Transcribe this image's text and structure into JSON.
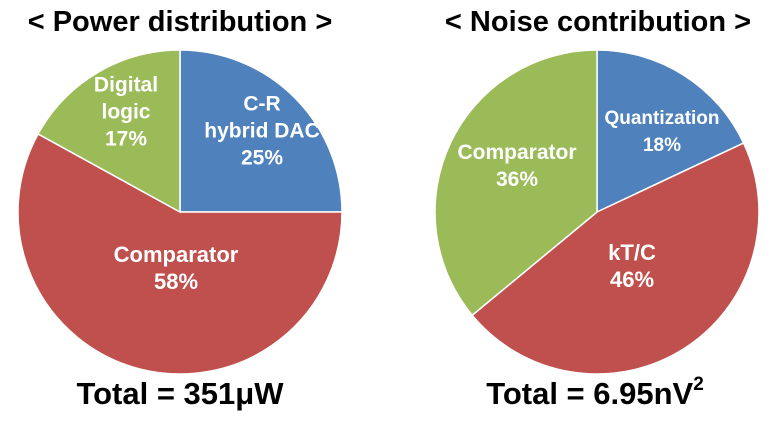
{
  "chart_data": [
    {
      "type": "pie",
      "title": "< Power distribution >",
      "total": {
        "label": "Total = 351μW",
        "unit_sup": ""
      },
      "start_angle_deg": 0,
      "direction": "clockwise",
      "slices": [
        {
          "label_lines": [
            "C-R",
            "hybrid DAC",
            "25%"
          ],
          "value": 25,
          "color": "#4f81bd"
        },
        {
          "label_lines": [
            "Comparator",
            "58%"
          ],
          "value": 58,
          "color": "#c0504d"
        },
        {
          "label_lines": [
            "Digital",
            "logic",
            "17%"
          ],
          "value": 17,
          "color": "#9bbb59"
        }
      ]
    },
    {
      "type": "pie",
      "title": "< Noise contribution >",
      "total": {
        "label": "Total = 6.95nV",
        "unit_sup": "2"
      },
      "start_angle_deg": 0,
      "direction": "clockwise",
      "slices": [
        {
          "label_lines": [
            "Quantization",
            "18%"
          ],
          "value": 18,
          "color": "#4f81bd"
        },
        {
          "label_lines": [
            "kT/C",
            "46%"
          ],
          "value": 46,
          "color": "#c0504d"
        },
        {
          "label_lines": [
            "Comparator",
            "36%"
          ],
          "value": 36,
          "color": "#9bbb59"
        }
      ]
    }
  ]
}
